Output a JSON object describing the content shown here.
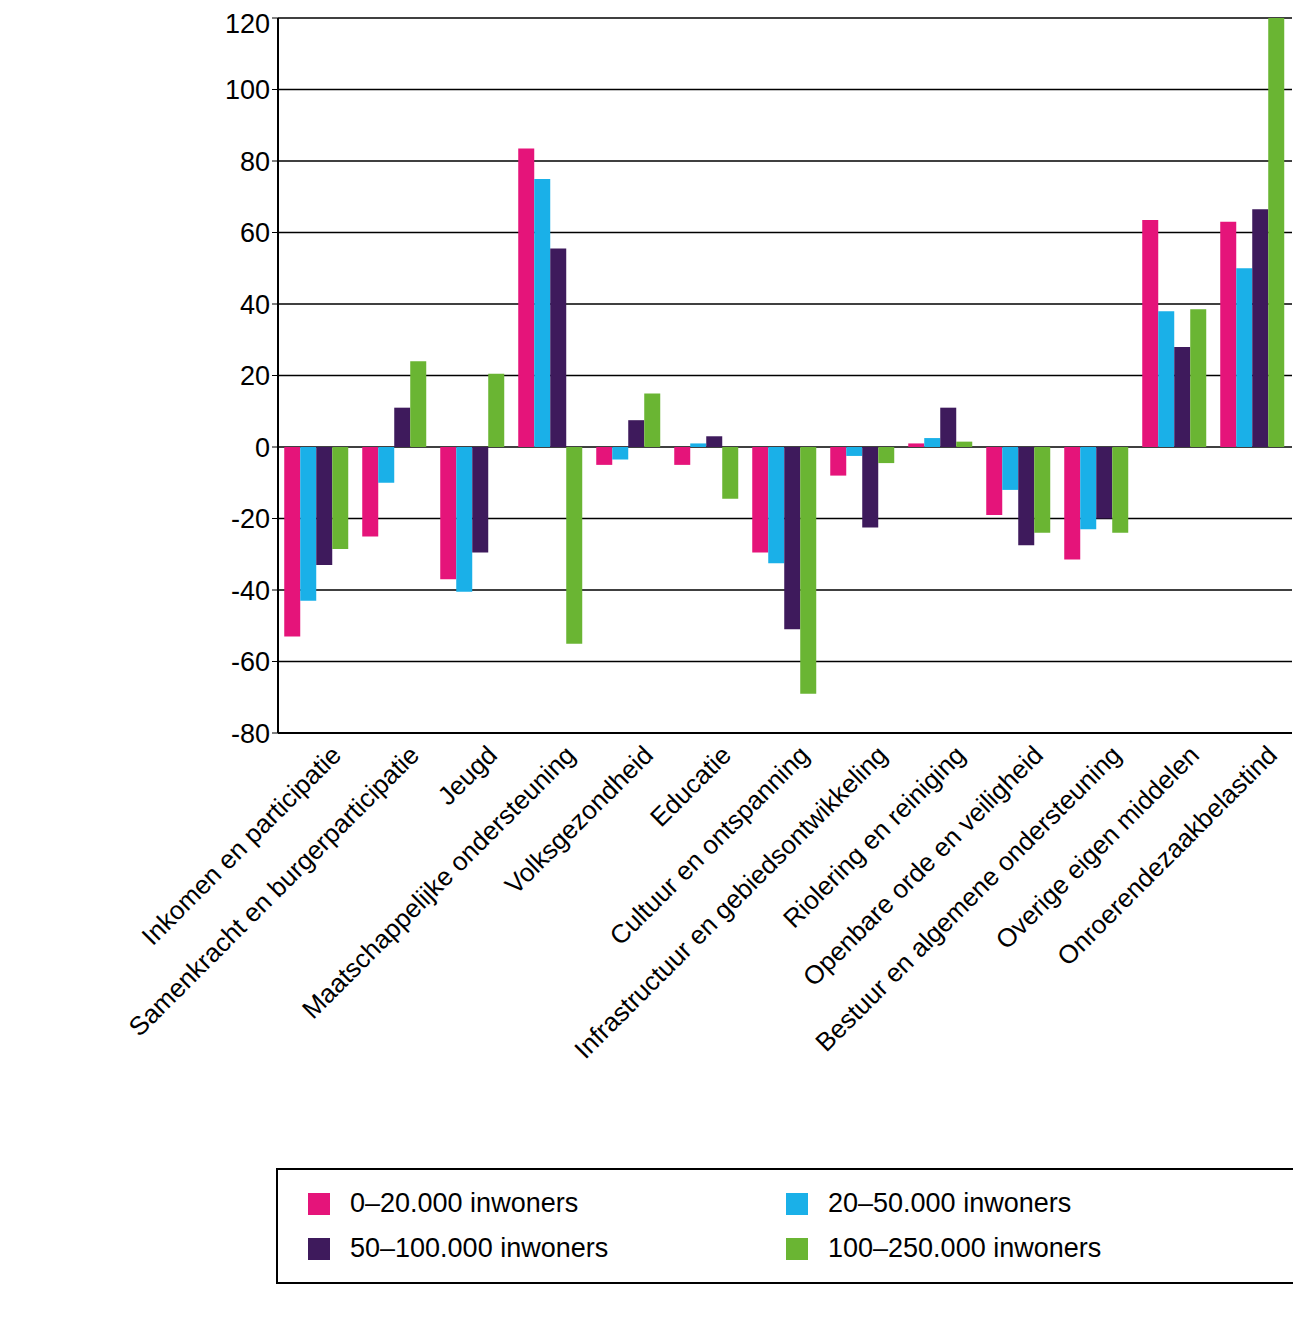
{
  "chart_data": {
    "type": "bar",
    "categories": [
      "Inkomen en participatie",
      "Samenkracht en burgerparticipatie",
      "Jeugd",
      "Maatschappelijke ondersteuning",
      "Volksgezondheid",
      "Educatie",
      "Cultuur en ontspanning",
      "Infrastructuur en gebiedsontwikkeling",
      "Riolering en reiniging",
      "Openbare orde en veiligheid",
      "Bestuur en algemene ondersteuning",
      "Overige eigen middelen",
      "Onroerendezaakbelastind"
    ],
    "series": [
      {
        "name": "0–20.000 inwoners",
        "color": "#e5147a",
        "values": [
          -53,
          -25,
          -37,
          83.5,
          -5,
          -5,
          -29.5,
          -8,
          1,
          -19,
          -31.5,
          63.5,
          63
        ]
      },
      {
        "name": "20–50.000 inwoners",
        "color": "#1ab0e8",
        "values": [
          -43,
          -10,
          -40.5,
          75,
          -3.5,
          1,
          -32.5,
          -2.5,
          2.5,
          -12,
          -23,
          38,
          50
        ]
      },
      {
        "name": "50–100.000 inwoners",
        "color": "#3e1a5c",
        "values": [
          -33,
          11,
          -29.5,
          55.5,
          7.5,
          3,
          -51,
          -22.5,
          11,
          -27.5,
          -20,
          28,
          66.5
        ]
      },
      {
        "name": "100–250.000 inwoners",
        "color": "#6ab533",
        "values": [
          -28.5,
          24,
          20.5,
          -55,
          15,
          -14.5,
          -69,
          -4.5,
          1.5,
          -24,
          -24,
          38.5,
          120
        ]
      }
    ],
    "ylim": [
      -80,
      120
    ],
    "yticks": [
      -80,
      -60,
      -40,
      -20,
      0,
      20,
      40,
      60,
      80,
      100,
      120
    ],
    "grid": true,
    "legend": "bottom"
  }
}
